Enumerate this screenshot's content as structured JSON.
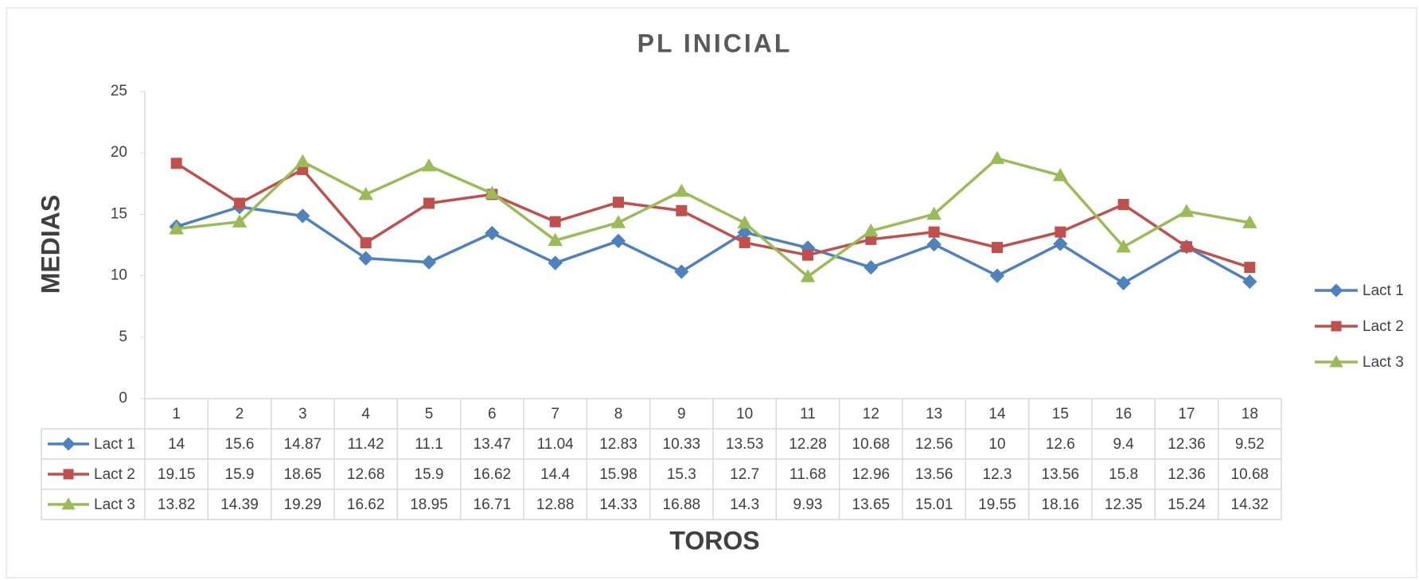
{
  "chart_data": {
    "type": "line",
    "title": "PL INICIAL",
    "y_label": "MEDIAS",
    "x_label": "TOROS",
    "categories": [
      "1",
      "2",
      "3",
      "4",
      "5",
      "6",
      "7",
      "8",
      "9",
      "10",
      "11",
      "12",
      "13",
      "14",
      "15",
      "16",
      "17",
      "18"
    ],
    "series": [
      {
        "name": "Lact 1",
        "color": "#4f81bd",
        "marker": "diamond",
        "values": [
          14,
          15.6,
          14.87,
          11.42,
          11.1,
          13.47,
          11.04,
          12.83,
          10.33,
          13.53,
          12.28,
          10.68,
          12.56,
          10,
          12.6,
          9.4,
          12.36,
          9.52
        ]
      },
      {
        "name": "Lact 2",
        "color": "#c0504d",
        "marker": "square",
        "values": [
          19.15,
          15.9,
          18.65,
          12.68,
          15.9,
          16.62,
          14.4,
          15.98,
          15.3,
          12.7,
          11.68,
          12.96,
          13.56,
          12.3,
          13.56,
          15.8,
          12.36,
          10.68
        ]
      },
      {
        "name": "Lact 3",
        "color": "#9bbb59",
        "marker": "triangle",
        "values": [
          13.82,
          14.39,
          19.29,
          16.62,
          18.95,
          16.71,
          12.88,
          14.33,
          16.88,
          14.3,
          9.93,
          13.65,
          15.01,
          19.55,
          18.16,
          12.35,
          15.24,
          14.32
        ]
      }
    ],
    "ylim": [
      0,
      25
    ],
    "yticks": [
      0,
      5,
      10,
      15,
      20,
      25
    ],
    "grid": false,
    "legend": "right",
    "data_table": true
  }
}
